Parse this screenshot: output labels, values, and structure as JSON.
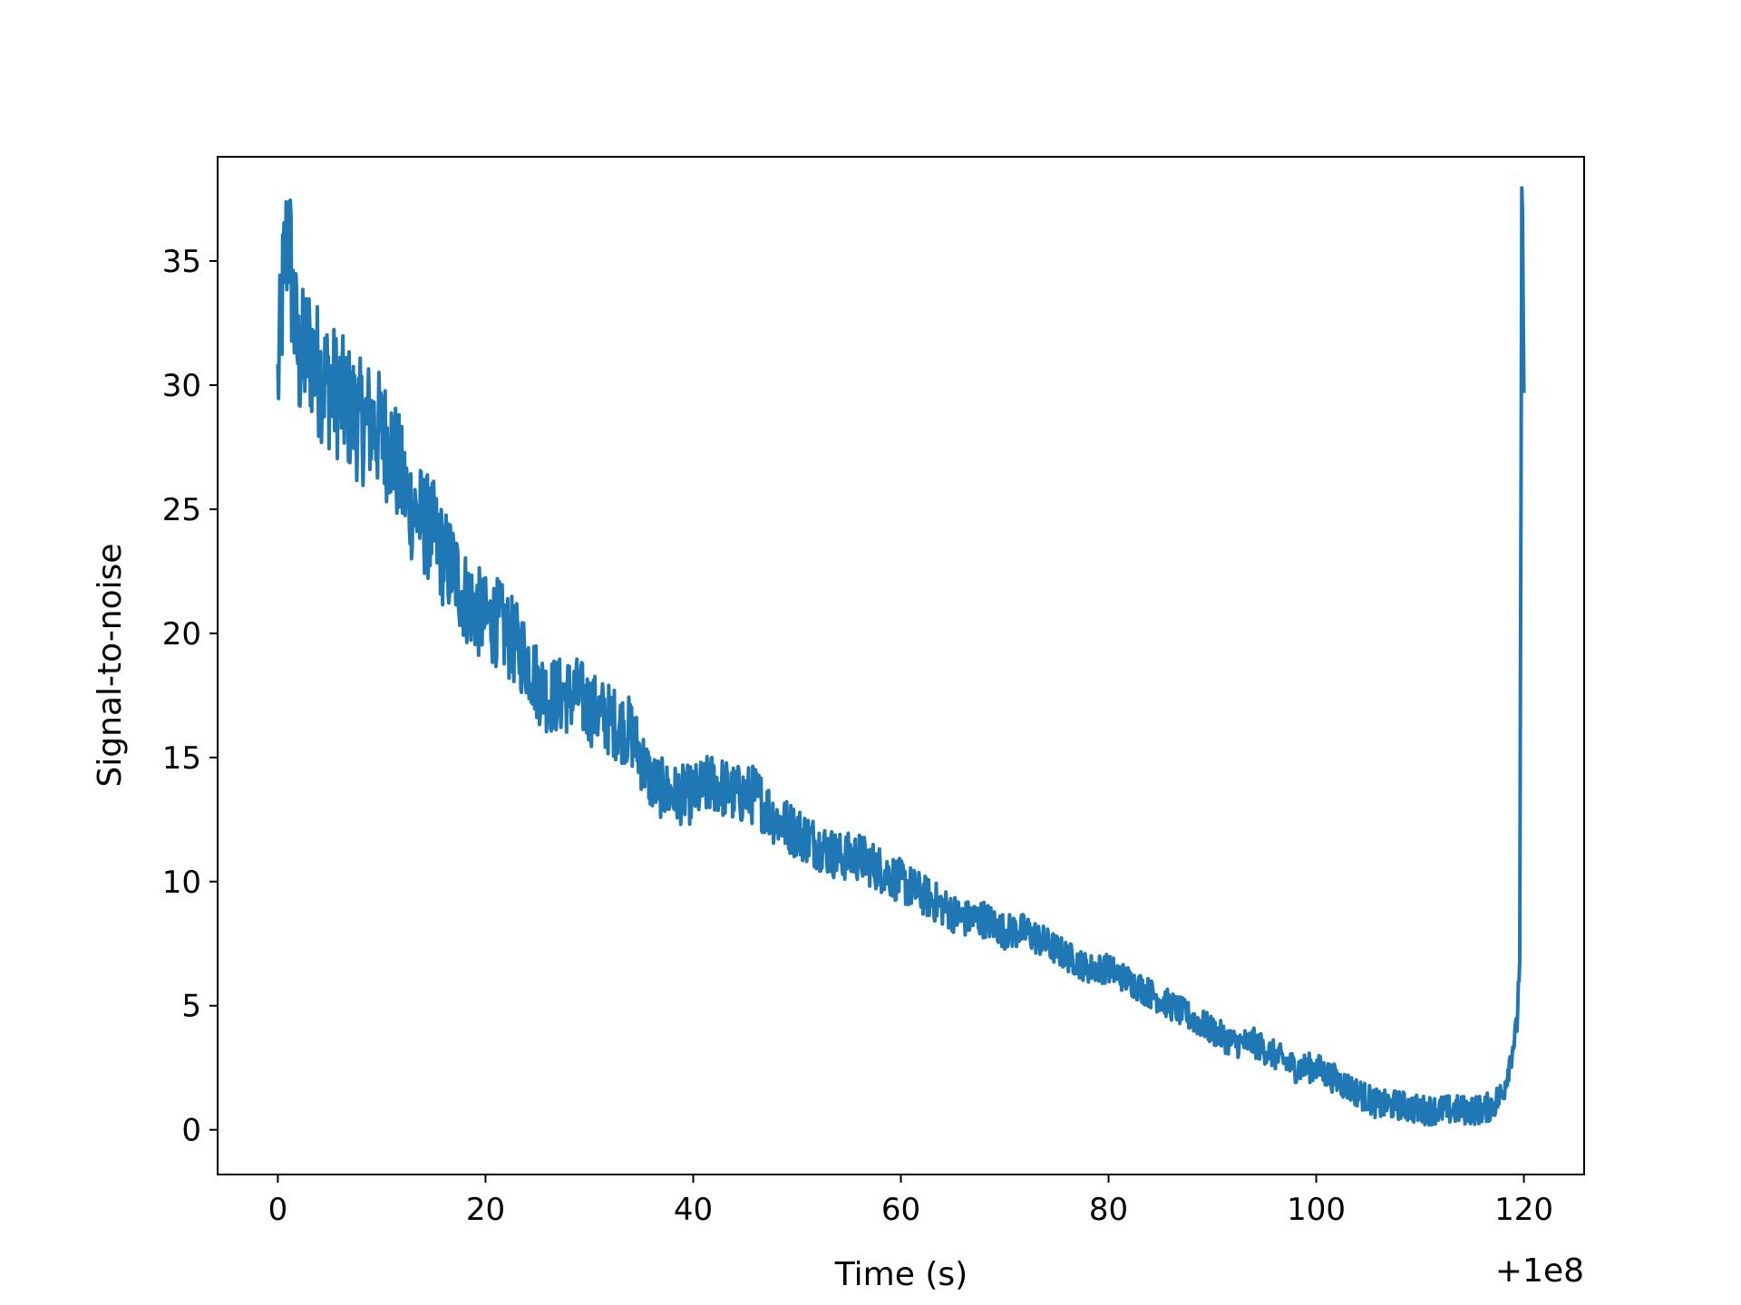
{
  "chart_data": {
    "type": "line",
    "title": "",
    "xlabel": "Time (s)",
    "ylabel": "Signal-to-noise",
    "x_offset_label": "+1e8",
    "xlim": [
      -5.8,
      125.8
    ],
    "ylim": [
      -1.8,
      39.2
    ],
    "xticks": [
      0,
      20,
      40,
      60,
      80,
      100,
      120
    ],
    "xtick_labels": [
      "0",
      "20",
      "40",
      "60",
      "80",
      "100",
      "120"
    ],
    "yticks": [
      0,
      5,
      10,
      15,
      20,
      25,
      30,
      35
    ],
    "ytick_labels": [
      "0",
      "5",
      "10",
      "15",
      "20",
      "25",
      "30",
      "35"
    ],
    "grid": false,
    "line_color": "#1f77b4",
    "series": [
      {
        "x": [
          0,
          0.5,
          1,
          1.5,
          2,
          3,
          4,
          5,
          6,
          7,
          8,
          9,
          10,
          11,
          12,
          13,
          14,
          15,
          16,
          17,
          18,
          19,
          20,
          21,
          22,
          23,
          24,
          25,
          26,
          27,
          28,
          29,
          30,
          32,
          34,
          36,
          38,
          40,
          42,
          44,
          46,
          48,
          50,
          52,
          54,
          56,
          58,
          60,
          62,
          64,
          66,
          68,
          70,
          72,
          74,
          76,
          78,
          80,
          82,
          84,
          86,
          88,
          90,
          92,
          94,
          96,
          98,
          100,
          102,
          104,
          106,
          108,
          110,
          112,
          114,
          116,
          117,
          118,
          118.5,
          119,
          119.3,
          119.6,
          119.8,
          120
        ],
        "y": [
          30,
          34,
          36.5,
          33,
          31,
          31.5,
          30.5,
          30,
          29.5,
          29,
          28.5,
          28.5,
          28,
          27.5,
          26,
          25,
          24.5,
          24,
          23,
          22.5,
          21.5,
          21,
          20.5,
          20.5,
          20,
          19.5,
          19,
          18,
          17.5,
          17.5,
          17.5,
          17.5,
          17,
          16.5,
          16,
          14,
          13.5,
          13.5,
          14,
          13.5,
          13.5,
          12.5,
          12,
          11.5,
          11,
          11,
          10.5,
          10,
          9.5,
          9,
          8.5,
          8.5,
          8,
          8,
          7.5,
          7,
          6.5,
          6.5,
          6,
          5.5,
          5,
          4.5,
          4,
          3.5,
          3.5,
          3,
          2.5,
          2.5,
          2,
          1.5,
          1,
          1,
          0.8,
          0.8,
          0.8,
          0.8,
          1,
          1.5,
          2.5,
          3.5,
          4,
          7,
          36.5,
          29
        ]
      }
    ]
  }
}
